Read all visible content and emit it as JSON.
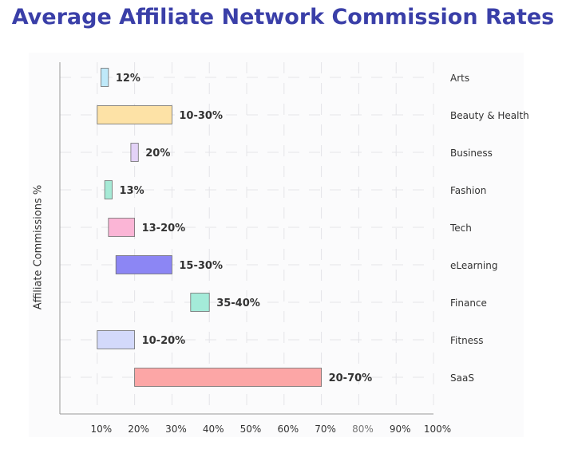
{
  "title": "Average Affiliate Network Commission Rates",
  "chart_data": {
    "type": "bar",
    "orientation": "horizontal-range",
    "title": "Average Affiliate Network Commission Rates",
    "ylabel": "Affiliate Commissions %",
    "xlabel": "",
    "xlim": [
      0,
      100
    ],
    "x_ticks": [
      "10%",
      "20%",
      "30%",
      "40%",
      "50%",
      "60%",
      "70%",
      "80%",
      "90%",
      "100%"
    ],
    "grid": true,
    "categories": [
      "Arts",
      "Beauty & Health",
      "Business",
      "Fashion",
      "Tech",
      "eLearning",
      "Finance",
      "Fitness",
      "SaaS"
    ],
    "ranges": [
      {
        "category": "Arts",
        "low": 11,
        "high": 13,
        "label": "12%",
        "color": "#bfe9f9"
      },
      {
        "category": "Beauty & Health",
        "low": 10,
        "high": 30,
        "label": "10-30%",
        "color": "#fde2a6"
      },
      {
        "category": "Business",
        "low": 19,
        "high": 21,
        "label": "20%",
        "color": "#e3d2f7"
      },
      {
        "category": "Fashion",
        "low": 12,
        "high": 14,
        "label": "13%",
        "color": "#a6ead6"
      },
      {
        "category": "Tech",
        "low": 13,
        "high": 20,
        "label": "13-20%",
        "color": "#fbb5d6"
      },
      {
        "category": "eLearning",
        "low": 15,
        "high": 30,
        "label": "15-30%",
        "color": "#8c86f4"
      },
      {
        "category": "Finance",
        "low": 35,
        "high": 40,
        "label": "35-40%",
        "color": "#a4ebd9"
      },
      {
        "category": "Fitness",
        "low": 10,
        "high": 20,
        "label": "10-20%",
        "color": "#d3d9fb"
      },
      {
        "category": "SaaS",
        "low": 20,
        "high": 70,
        "label": "20-70%",
        "color": "#fca6a6"
      }
    ]
  }
}
